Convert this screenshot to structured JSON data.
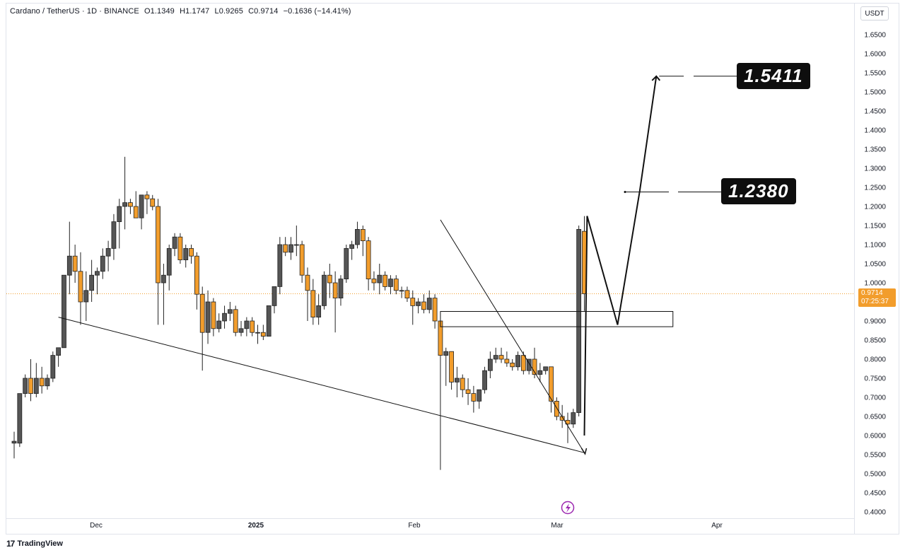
{
  "header": {
    "symbol": "Cardano / TetherUS · 1D · BINANCE",
    "open": "O1.1349",
    "high": "H1.1747",
    "low": "L0.9265",
    "close": "C0.9714",
    "change": "−0.1636 (−14.41%)"
  },
  "currency_button": "USDT",
  "last_price": {
    "value": "0.9714",
    "countdown": "07:25:37",
    "color": "#f29d2c"
  },
  "targets": [
    {
      "label": "1.5411"
    },
    {
      "label": "1.2380"
    }
  ],
  "brand": {
    "logo_text": "TradingView",
    "logo_mark": "17"
  },
  "colors": {
    "up": "#555555",
    "down": "#f29d2c",
    "accent": "#f29d2c",
    "lightning": "#9c27b0"
  },
  "chart_data": {
    "type": "candlestick",
    "symbol": "ADA/USDT",
    "timeframe": "1D",
    "ylim": [
      0.38,
      1.68
    ],
    "y_ticks": [
      "1.6500",
      "1.6000",
      "1.5500",
      "1.5000",
      "1.4500",
      "1.4000",
      "1.3500",
      "1.3000",
      "1.2500",
      "1.2000",
      "1.1500",
      "1.1000",
      "1.0500",
      "1.0000",
      "0.9500",
      "0.9000",
      "0.8500",
      "0.8000",
      "0.7500",
      "0.7000",
      "0.6500",
      "0.6000",
      "0.5500",
      "0.5000",
      "0.4500",
      "0.4000"
    ],
    "x_ticks": [
      "Dec",
      "2025",
      "Feb",
      "Mar",
      "Apr"
    ],
    "candles": [
      {
        "o": 0.58,
        "h": 0.61,
        "l": 0.54,
        "c": 0.585
      },
      {
        "o": 0.58,
        "h": 0.71,
        "l": 0.57,
        "c": 0.71
      },
      {
        "o": 0.71,
        "h": 0.76,
        "l": 0.7,
        "c": 0.75
      },
      {
        "o": 0.75,
        "h": 0.8,
        "l": 0.69,
        "c": 0.71
      },
      {
        "o": 0.71,
        "h": 0.79,
        "l": 0.7,
        "c": 0.75
      },
      {
        "o": 0.75,
        "h": 0.78,
        "l": 0.71,
        "c": 0.73
      },
      {
        "o": 0.73,
        "h": 0.76,
        "l": 0.72,
        "c": 0.75
      },
      {
        "o": 0.75,
        "h": 0.82,
        "l": 0.74,
        "c": 0.81
      },
      {
        "o": 0.81,
        "h": 0.83,
        "l": 0.78,
        "c": 0.83
      },
      {
        "o": 0.83,
        "h": 1.02,
        "l": 0.83,
        "c": 1.02
      },
      {
        "o": 1.02,
        "h": 1.16,
        "l": 0.97,
        "c": 1.07
      },
      {
        "o": 1.07,
        "h": 1.1,
        "l": 1.0,
        "c": 1.03
      },
      {
        "o": 1.03,
        "h": 1.08,
        "l": 0.89,
        "c": 0.95
      },
      {
        "o": 0.95,
        "h": 1.03,
        "l": 0.9,
        "c": 0.98
      },
      {
        "o": 0.98,
        "h": 1.06,
        "l": 0.95,
        "c": 1.02
      },
      {
        "o": 1.02,
        "h": 1.04,
        "l": 0.97,
        "c": 1.03
      },
      {
        "o": 1.03,
        "h": 1.09,
        "l": 1.01,
        "c": 1.07
      },
      {
        "o": 1.07,
        "h": 1.11,
        "l": 1.03,
        "c": 1.09
      },
      {
        "o": 1.09,
        "h": 1.18,
        "l": 1.06,
        "c": 1.16
      },
      {
        "o": 1.16,
        "h": 1.22,
        "l": 1.09,
        "c": 1.2
      },
      {
        "o": 1.2,
        "h": 1.33,
        "l": 1.14,
        "c": 1.21
      },
      {
        "o": 1.21,
        "h": 1.22,
        "l": 1.18,
        "c": 1.2
      },
      {
        "o": 1.2,
        "h": 1.24,
        "l": 1.17,
        "c": 1.17
      },
      {
        "o": 1.17,
        "h": 1.23,
        "l": 1.14,
        "c": 1.23
      },
      {
        "o": 1.23,
        "h": 1.24,
        "l": 1.18,
        "c": 1.22
      },
      {
        "o": 1.22,
        "h": 1.23,
        "l": 1.19,
        "c": 1.2
      },
      {
        "o": 1.2,
        "h": 1.22,
        "l": 0.89,
        "c": 1.0
      },
      {
        "o": 1.0,
        "h": 1.05,
        "l": 0.89,
        "c": 1.02
      },
      {
        "o": 1.02,
        "h": 1.1,
        "l": 0.98,
        "c": 1.09
      },
      {
        "o": 1.09,
        "h": 1.13,
        "l": 1.07,
        "c": 1.12
      },
      {
        "o": 1.12,
        "h": 1.13,
        "l": 1.05,
        "c": 1.06
      },
      {
        "o": 1.06,
        "h": 1.1,
        "l": 1.04,
        "c": 1.09
      },
      {
        "o": 1.09,
        "h": 1.1,
        "l": 1.05,
        "c": 1.07
      },
      {
        "o": 1.07,
        "h": 1.08,
        "l": 0.93,
        "c": 0.97
      },
      {
        "o": 0.97,
        "h": 0.99,
        "l": 0.77,
        "c": 0.87
      },
      {
        "o": 0.87,
        "h": 0.98,
        "l": 0.84,
        "c": 0.95
      },
      {
        "o": 0.95,
        "h": 0.96,
        "l": 0.86,
        "c": 0.88
      },
      {
        "o": 0.88,
        "h": 0.92,
        "l": 0.87,
        "c": 0.9
      },
      {
        "o": 0.9,
        "h": 0.94,
        "l": 0.88,
        "c": 0.92
      },
      {
        "o": 0.92,
        "h": 0.95,
        "l": 0.9,
        "c": 0.93
      },
      {
        "o": 0.93,
        "h": 0.94,
        "l": 0.86,
        "c": 0.87
      },
      {
        "o": 0.87,
        "h": 0.9,
        "l": 0.86,
        "c": 0.88
      },
      {
        "o": 0.88,
        "h": 0.91,
        "l": 0.86,
        "c": 0.9
      },
      {
        "o": 0.9,
        "h": 0.91,
        "l": 0.86,
        "c": 0.87
      },
      {
        "o": 0.87,
        "h": 0.89,
        "l": 0.84,
        "c": 0.87
      },
      {
        "o": 0.87,
        "h": 0.89,
        "l": 0.85,
        "c": 0.86
      },
      {
        "o": 0.86,
        "h": 0.94,
        "l": 0.86,
        "c": 0.94
      },
      {
        "o": 0.94,
        "h": 0.99,
        "l": 0.92,
        "c": 0.99
      },
      {
        "o": 0.99,
        "h": 1.12,
        "l": 0.97,
        "c": 1.1
      },
      {
        "o": 1.1,
        "h": 1.12,
        "l": 1.07,
        "c": 1.08
      },
      {
        "o": 1.08,
        "h": 1.12,
        "l": 1.06,
        "c": 1.1
      },
      {
        "o": 1.1,
        "h": 1.15,
        "l": 1.07,
        "c": 1.1
      },
      {
        "o": 1.1,
        "h": 1.11,
        "l": 1.0,
        "c": 1.02
      },
      {
        "o": 1.02,
        "h": 1.04,
        "l": 0.9,
        "c": 0.98
      },
      {
        "o": 0.98,
        "h": 1.01,
        "l": 0.89,
        "c": 0.91
      },
      {
        "o": 0.91,
        "h": 0.97,
        "l": 0.89,
        "c": 0.94
      },
      {
        "o": 0.94,
        "h": 1.03,
        "l": 0.93,
        "c": 1.02
      },
      {
        "o": 1.02,
        "h": 1.05,
        "l": 0.96,
        "c": 1.0
      },
      {
        "o": 1.0,
        "h": 1.03,
        "l": 0.87,
        "c": 0.96
      },
      {
        "o": 0.96,
        "h": 1.02,
        "l": 0.94,
        "c": 1.01
      },
      {
        "o": 1.01,
        "h": 1.1,
        "l": 1.0,
        "c": 1.09
      },
      {
        "o": 1.09,
        "h": 1.11,
        "l": 1.06,
        "c": 1.1
      },
      {
        "o": 1.1,
        "h": 1.16,
        "l": 1.09,
        "c": 1.14
      },
      {
        "o": 1.14,
        "h": 1.15,
        "l": 1.07,
        "c": 1.11
      },
      {
        "o": 1.11,
        "h": 1.12,
        "l": 0.98,
        "c": 1.01
      },
      {
        "o": 1.01,
        "h": 1.03,
        "l": 0.98,
        "c": 1.0
      },
      {
        "o": 1.0,
        "h": 1.05,
        "l": 0.97,
        "c": 1.02
      },
      {
        "o": 1.02,
        "h": 1.03,
        "l": 0.98,
        "c": 0.99
      },
      {
        "o": 0.99,
        "h": 1.02,
        "l": 0.97,
        "c": 1.01
      },
      {
        "o": 1.01,
        "h": 1.02,
        "l": 0.97,
        "c": 0.98
      },
      {
        "o": 0.98,
        "h": 0.99,
        "l": 0.96,
        "c": 0.98
      },
      {
        "o": 0.98,
        "h": 0.99,
        "l": 0.95,
        "c": 0.96
      },
      {
        "o": 0.96,
        "h": 0.98,
        "l": 0.89,
        "c": 0.94
      },
      {
        "o": 0.94,
        "h": 0.96,
        "l": 0.92,
        "c": 0.95
      },
      {
        "o": 0.95,
        "h": 0.97,
        "l": 0.92,
        "c": 0.93
      },
      {
        "o": 0.93,
        "h": 0.98,
        "l": 0.92,
        "c": 0.96
      },
      {
        "o": 0.96,
        "h": 0.97,
        "l": 0.88,
        "c": 0.9
      },
      {
        "o": 0.9,
        "h": 0.9,
        "l": 0.51,
        "c": 0.81
      },
      {
        "o": 0.81,
        "h": 0.83,
        "l": 0.73,
        "c": 0.82
      },
      {
        "o": 0.82,
        "h": 0.82,
        "l": 0.72,
        "c": 0.74
      },
      {
        "o": 0.74,
        "h": 0.78,
        "l": 0.7,
        "c": 0.75
      },
      {
        "o": 0.75,
        "h": 0.76,
        "l": 0.7,
        "c": 0.72
      },
      {
        "o": 0.72,
        "h": 0.75,
        "l": 0.68,
        "c": 0.71
      },
      {
        "o": 0.71,
        "h": 0.73,
        "l": 0.66,
        "c": 0.69
      },
      {
        "o": 0.69,
        "h": 0.72,
        "l": 0.67,
        "c": 0.72
      },
      {
        "o": 0.72,
        "h": 0.78,
        "l": 0.71,
        "c": 0.77
      },
      {
        "o": 0.77,
        "h": 0.82,
        "l": 0.75,
        "c": 0.8
      },
      {
        "o": 0.8,
        "h": 0.83,
        "l": 0.79,
        "c": 0.81
      },
      {
        "o": 0.81,
        "h": 0.83,
        "l": 0.79,
        "c": 0.8
      },
      {
        "o": 0.8,
        "h": 0.82,
        "l": 0.78,
        "c": 0.79
      },
      {
        "o": 0.79,
        "h": 0.8,
        "l": 0.77,
        "c": 0.78
      },
      {
        "o": 0.78,
        "h": 0.82,
        "l": 0.77,
        "c": 0.81
      },
      {
        "o": 0.81,
        "h": 0.82,
        "l": 0.76,
        "c": 0.77
      },
      {
        "o": 0.77,
        "h": 0.8,
        "l": 0.76,
        "c": 0.8
      },
      {
        "o": 0.8,
        "h": 0.83,
        "l": 0.75,
        "c": 0.76
      },
      {
        "o": 0.76,
        "h": 0.79,
        "l": 0.74,
        "c": 0.77
      },
      {
        "o": 0.77,
        "h": 0.78,
        "l": 0.76,
        "c": 0.78
      },
      {
        "o": 0.78,
        "h": 0.78,
        "l": 0.66,
        "c": 0.69
      },
      {
        "o": 0.69,
        "h": 0.7,
        "l": 0.64,
        "c": 0.65
      },
      {
        "o": 0.65,
        "h": 0.68,
        "l": 0.62,
        "c": 0.64
      },
      {
        "o": 0.64,
        "h": 0.66,
        "l": 0.58,
        "c": 0.63
      },
      {
        "o": 0.63,
        "h": 0.67,
        "l": 0.62,
        "c": 0.66
      },
      {
        "o": 0.66,
        "h": 1.15,
        "l": 0.65,
        "c": 1.14
      },
      {
        "o": 1.1349,
        "h": 1.1747,
        "l": 0.9265,
        "c": 0.9714
      }
    ],
    "annotations": {
      "wedge_upper": [
        [
          77,
          1.165
        ],
        [
          103,
          0.555
        ]
      ],
      "wedge_lower": [
        [
          8,
          0.91
        ],
        [
          103,
          0.555
        ]
      ],
      "box": [
        [
          77,
          0.885
        ],
        [
          119,
          0.925
        ]
      ],
      "projection_path": [
        [
          103,
          0.6
        ],
        [
          103.5,
          1.175
        ],
        [
          109,
          0.89
        ],
        [
          113,
          1.24
        ],
        [
          116,
          1.5411
        ]
      ],
      "targets": [
        1.5411,
        1.238
      ]
    }
  }
}
